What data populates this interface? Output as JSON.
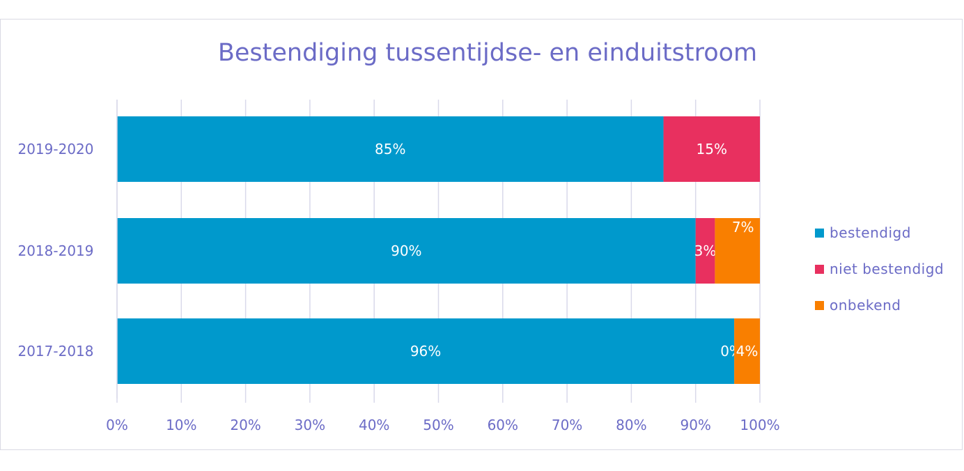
{
  "chart_data": {
    "type": "bar",
    "orientation": "horizontal",
    "stacked": true,
    "title": "Bestendiging tussentijdse- en einduitstroom",
    "categories": [
      "2019-2020",
      "2018-2019",
      "2017-2018"
    ],
    "series": [
      {
        "name": "bestendigd",
        "color": "#0099cc",
        "values": [
          85,
          90,
          96
        ],
        "labels": [
          "85%",
          "90%",
          "96%"
        ]
      },
      {
        "name": "niet bestendigd",
        "color": "#e8305f",
        "values": [
          15,
          3,
          0
        ],
        "labels": [
          "15%",
          "3%",
          "0%"
        ]
      },
      {
        "name": "onbekend",
        "color": "#f97f00",
        "values": [
          0,
          7,
          4
        ],
        "labels": [
          "",
          "7%",
          "4%"
        ]
      }
    ],
    "xlim": [
      0,
      100
    ],
    "xticks": [
      "0%",
      "10%",
      "20%",
      "30%",
      "40%",
      "50%",
      "60%",
      "70%",
      "80%",
      "90%",
      "100%"
    ],
    "grid": true,
    "legend_position": "right"
  },
  "colors": {
    "text": "#6b6bc6",
    "grid": "#d9d9ea"
  }
}
